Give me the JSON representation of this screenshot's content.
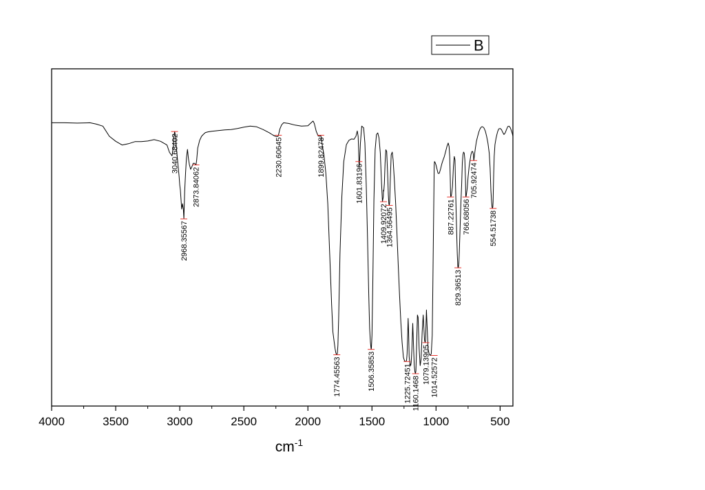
{
  "chart_data": {
    "type": "line",
    "xlabel": "cm",
    "xlabel_sup": "-1",
    "ylabel": "",
    "xlim": [
      4000,
      400
    ],
    "ylim": [
      0,
      100
    ],
    "x_reversed": true,
    "grid": false,
    "y_ticks_labeled": false,
    "x_ticks": [
      4000,
      3500,
      3000,
      2500,
      2000,
      1500,
      1000,
      500
    ],
    "x_minor_ticks": [
      3750,
      3250,
      2750,
      2250,
      1750,
      1250,
      750
    ],
    "legend": {
      "placement": "top-right",
      "entries": [
        "B"
      ]
    },
    "series": [
      {
        "name": "B",
        "color": "#000000",
        "x": [
          4000,
          3900,
          3800,
          3700,
          3650,
          3600,
          3550,
          3500,
          3450,
          3400,
          3350,
          3300,
          3250,
          3200,
          3150,
          3100,
          3080,
          3060,
          3050,
          3045,
          3040,
          3035,
          3025,
          3015,
          3005,
          3000,
          2995,
          2985,
          2978,
          2972,
          2968,
          2962,
          2955,
          2948,
          2940,
          2932,
          2925,
          2915,
          2905,
          2895,
          2885,
          2878,
          2873,
          2868,
          2860,
          2845,
          2830,
          2815,
          2800,
          2780,
          2750,
          2700,
          2650,
          2600,
          2550,
          2500,
          2450,
          2400,
          2350,
          2300,
          2275,
          2255,
          2240,
          2233,
          2230,
          2226,
          2218,
          2205,
          2190,
          2150,
          2100,
          2050,
          2000,
          1975,
          1960,
          1950,
          1935,
          1920,
          1910,
          1905,
          1900,
          1895,
          1890,
          1875,
          1860,
          1845,
          1830,
          1815,
          1805,
          1795,
          1788,
          1782,
          1778,
          1774,
          1770,
          1766,
          1760,
          1750,
          1735,
          1720,
          1700,
          1680,
          1660,
          1640,
          1625,
          1615,
          1608,
          1604,
          1602,
          1600,
          1596,
          1590,
          1580,
          1565,
          1555,
          1545,
          1535,
          1525,
          1518,
          1512,
          1508,
          1506,
          1504,
          1500,
          1493,
          1485,
          1475,
          1465,
          1455,
          1445,
          1435,
          1425,
          1418,
          1412,
          1410,
          1408,
          1403,
          1398,
          1392,
          1385,
          1378,
          1372,
          1368,
          1365,
          1362,
          1358,
          1350,
          1342,
          1335,
          1325,
          1315,
          1305,
          1295,
          1285,
          1275,
          1265,
          1255,
          1245,
          1238,
          1230,
          1226,
          1222,
          1218,
          1214,
          1210,
          1206,
          1202,
          1198,
          1194,
          1188,
          1182,
          1176,
          1170,
          1165,
          1161,
          1157,
          1152,
          1145,
          1140,
          1132,
          1124,
          1116,
          1108,
          1100,
          1095,
          1090,
          1085,
          1082,
          1079,
          1075,
          1070,
          1062,
          1054,
          1045,
          1037,
          1030,
          1025,
          1020,
          1016,
          1014,
          1012,
          1008,
          1000,
          992,
          984,
          975,
          965,
          955,
          945,
          935,
          925,
          915,
          905,
          898,
          893,
          889,
          887,
          885,
          880,
          872,
          864,
          858,
          852,
          848,
          843,
          838,
          834,
          831,
          829,
          826,
          822,
          818,
          812,
          806,
          800,
          795,
          790,
          785,
          780,
          775,
          770,
          768,
          766,
          762,
          757,
          750,
          742,
          735,
          728,
          720,
          714,
          708,
          706,
          704,
          700,
          693,
          685,
          675,
          665,
          655,
          645,
          635,
          625,
          615,
          605,
          595,
          585,
          578,
          572,
          567,
          563,
          560,
          557,
          555,
          553,
          550,
          546,
          540,
          532,
          525,
          518,
          510,
          500,
          490,
          480,
          470,
          460,
          450,
          440,
          430,
          420,
          410,
          405,
          400
        ],
        "y": [
          84.0,
          84.0,
          83.9,
          84.0,
          83.6,
          83.0,
          80.0,
          78.5,
          77.4,
          77.8,
          78.4,
          78.4,
          78.6,
          79.0,
          78.5,
          77.4,
          75.2,
          74.2,
          77.0,
          80.0,
          81.4,
          80.4,
          76.0,
          72.0,
          68.0,
          65.5,
          64.0,
          58.4,
          60.0,
          58.5,
          55.5,
          63.5,
          69.0,
          73.5,
          76.1,
          73.2,
          71.6,
          70.2,
          71.0,
          72.0,
          72.0,
          71.7,
          71.5,
          73.0,
          76.5,
          78.8,
          80.0,
          80.6,
          81.1,
          81.3,
          81.5,
          81.7,
          81.9,
          82.0,
          82.3,
          82.7,
          83.0,
          82.8,
          82.0,
          81.0,
          80.4,
          80.0,
          79.9,
          80.0,
          80.3,
          81.0,
          82.2,
          83.4,
          84.0,
          83.8,
          83.3,
          83.0,
          83.1,
          84.0,
          84.5,
          83.8,
          81.5,
          80.1,
          80.0,
          80.1,
          80.3,
          79.4,
          77.8,
          74.5,
          69.0,
          60.0,
          45.0,
          30.0,
          22.0,
          19.0,
          17.0,
          15.8,
          15.4,
          15.2,
          15.6,
          18.0,
          26.0,
          45.0,
          62.0,
          72.5,
          77.5,
          78.8,
          79.2,
          79.1,
          80.0,
          81.6,
          80.0,
          76.0,
          72.5,
          71.0,
          73.0,
          78.0,
          83.0,
          82.5,
          78.0,
          66.0,
          50.0,
          33.0,
          23.0,
          19.0,
          17.3,
          16.8,
          17.3,
          21.0,
          38.0,
          61.0,
          76.0,
          80.5,
          81.0,
          79.5,
          75.0,
          66.0,
          60.6,
          62.0,
          64.0,
          63.7,
          66.0,
          72.0,
          76.0,
          75.5,
          69.0,
          62.5,
          60.0,
          59.5,
          60.5,
          66.0,
          74.5,
          75.3,
          73.0,
          67.0,
          60.0,
          51.0,
          42.0,
          33.0,
          25.0,
          19.0,
          14.5,
          13.3,
          13.2,
          13.5,
          15.5,
          20.0,
          26.0,
          22.0,
          14.6,
          13.3,
          12.4,
          12.0,
          12.8,
          17.0,
          24.5,
          18.0,
          12.0,
          10.2,
          9.6,
          10.4,
          17.0,
          27.0,
          26.3,
          17.0,
          12.0,
          14.0,
          22.0,
          27.0,
          23.0,
          19.5,
          18.8,
          19.6,
          23.0,
          28.5,
          24.0,
          17.0,
          15.4,
          15.0,
          15.5,
          21.0,
          36.0,
          52.0,
          66.0,
          71.5,
          72.5,
          72.3,
          71.5,
          70.2,
          69.0,
          69.0,
          70.2,
          71.8,
          73.0,
          74.0,
          75.5,
          77.0,
          78.0,
          77.0,
          74.0,
          67.5,
          63.0,
          62.0,
          62.5,
          65.0,
          71.0,
          74.0,
          73.0,
          66.0,
          57.0,
          50.0,
          45.0,
          42.0,
          41.0,
          41.0,
          42.5,
          46.0,
          53.0,
          60.0,
          66.0,
          72.0,
          74.5,
          75.3,
          75.0,
          73.0,
          67.0,
          62.2,
          62.0,
          63.0,
          64.5,
          68.0,
          71.0,
          72.8,
          74.5,
          75.5,
          75.5,
          74.5,
          72.8,
          73.0,
          74.5,
          76.5,
          78.5,
          80.0,
          81.4,
          82.3,
          82.8,
          82.8,
          82.4,
          81.5,
          80.0,
          78.0,
          75.0,
          70.5,
          64.0,
          61.0,
          59.0,
          58.6,
          59.0,
          60.5,
          63.5,
          69.0,
          74.0,
          77.5,
          79.3,
          80.5,
          81.5,
          82.2,
          82.3,
          82.0,
          81.2,
          80.5,
          81.0,
          82.0,
          82.9,
          83.0,
          82.5,
          81.5,
          80.8,
          80.0
        ]
      }
    ],
    "annotations": [
      {
        "x": 3040.68402,
        "y": 81.4,
        "label": "3040.68402"
      },
      {
        "x": 2968.35567,
        "y": 55.5,
        "label": "2968.35567"
      },
      {
        "x": 2873.84062,
        "y": 71.5,
        "label": "2873.84062"
      },
      {
        "x": 2230.60645,
        "y": 80.3,
        "label": "2230.60645"
      },
      {
        "x": 1899.82478,
        "y": 80.3,
        "label": "1899.82478"
      },
      {
        "x": 1774.45563,
        "y": 15.2,
        "label": "1774.45563"
      },
      {
        "x": 1601.83196,
        "y": 72.5,
        "label": "1601.83196"
      },
      {
        "x": 1506.35853,
        "y": 16.8,
        "label": "1506.35853"
      },
      {
        "x": 1409.92072,
        "y": 60.6,
        "label": "1409.92072"
      },
      {
        "x": 1364.56495,
        "y": 59.5,
        "label": "1364.56495"
      },
      {
        "x": 1225.72451,
        "y": 13.2,
        "label": "1225.72451"
      },
      {
        "x": 1160.1468,
        "y": 9.6,
        "label": "1160.1468"
      },
      {
        "x": 1079.13905,
        "y": 18.8,
        "label": "1079.13905"
      },
      {
        "x": 1014.52572,
        "y": 15.0,
        "label": "1014.52572"
      },
      {
        "x": 887.22761,
        "y": 62.0,
        "label": "887.22761"
      },
      {
        "x": 829.36513,
        "y": 41.0,
        "label": "829.36513"
      },
      {
        "x": 766.68056,
        "y": 62.0,
        "label": "766.68056"
      },
      {
        "x": 705.92474,
        "y": 72.8,
        "label": "705.92474"
      },
      {
        "x": 554.51738,
        "y": 58.6,
        "label": "554.51738"
      }
    ]
  },
  "colors": {
    "line": "#000000",
    "frame": "#000000",
    "peak_marker": "#e8312a",
    "background": "#ffffff"
  }
}
